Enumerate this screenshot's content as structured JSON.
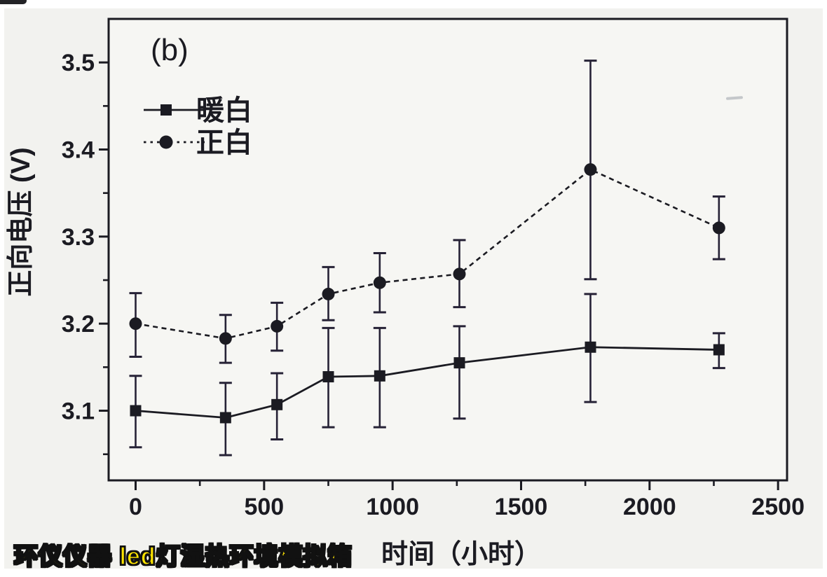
{
  "page": {
    "panel_label": "(b)",
    "watermark": "环仪仪器 led灯湿热环境模拟箱",
    "watermark_color": "#ffe400",
    "ink_color": "#1b1b22",
    "errorbar_color": "#262236",
    "scan_background": "#f2f2ef"
  },
  "chart_data": {
    "type": "line",
    "title": "",
    "panel": "(b)",
    "xlabel": "时间（小时）",
    "ylabel": "正向电压 (V)",
    "xlim": [
      -105,
      2535
    ],
    "ylim": [
      3.02,
      3.55
    ],
    "x_major_ticks": [
      0,
      500,
      1000,
      1500,
      2000,
      2500
    ],
    "x_minor_ticks": [
      250,
      750,
      1250,
      1750,
      2250
    ],
    "y_major_ticks": [
      3.1,
      3.2,
      3.3,
      3.4,
      3.5
    ],
    "y_minor_ticks": [
      3.05,
      3.15,
      3.25,
      3.35,
      3.45
    ],
    "grid": false,
    "legend_position": "top-left-inside",
    "x": [
      0,
      350,
      550,
      750,
      950,
      1260,
      1770,
      2270
    ],
    "series": [
      {
        "name": "暖白",
        "marker": "square",
        "line": "solid",
        "values": [
          3.1,
          3.092,
          3.107,
          3.139,
          3.14,
          3.155,
          3.173,
          3.17
        ],
        "err_plus": [
          0.04,
          0.04,
          0.036,
          0.056,
          0.055,
          0.042,
          0.061,
          0.019
        ],
        "err_minus": [
          0.042,
          0.043,
          0.04,
          0.058,
          0.059,
          0.064,
          0.063,
          0.021
        ]
      },
      {
        "name": "正白",
        "marker": "circle",
        "line": "dashed",
        "values": [
          3.2,
          3.183,
          3.197,
          3.234,
          3.247,
          3.257,
          3.377,
          3.31
        ],
        "err_plus": [
          0.035,
          0.027,
          0.027,
          0.031,
          0.034,
          0.039,
          0.125,
          0.036
        ],
        "err_minus": [
          0.038,
          0.028,
          0.028,
          0.03,
          0.034,
          0.038,
          0.126,
          0.036
        ]
      }
    ]
  }
}
